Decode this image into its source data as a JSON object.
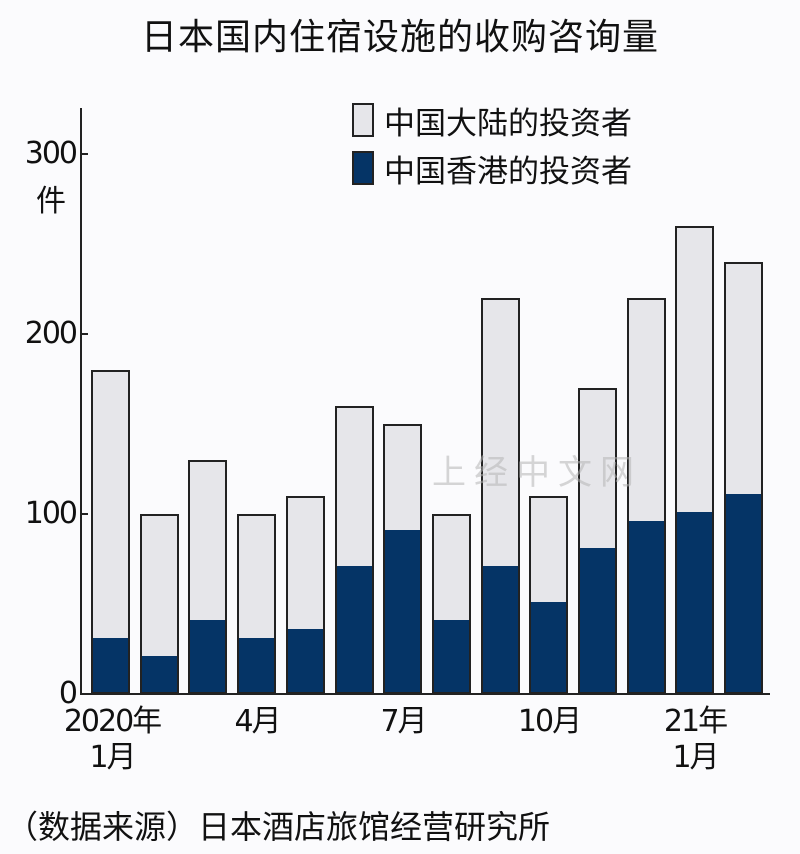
{
  "title": "日本国内住宿设施的收购咨询量",
  "legend": [
    {
      "label": "中国大陆的投资者",
      "color": "#e6e6ea"
    },
    {
      "label": "中国香港的投资者",
      "color": "#053466"
    }
  ],
  "y_axis": {
    "ticks": [
      "300",
      "200",
      "100",
      "0"
    ],
    "unit": "件"
  },
  "x_axis": {
    "labels": [
      {
        "line1": "2020年",
        "line2": "1月"
      },
      {
        "line1": "4月",
        "line2": ""
      },
      {
        "line1": "7月",
        "line2": ""
      },
      {
        "line1": "10月",
        "line2": ""
      },
      {
        "line1": "21年",
        "line2": "1月"
      }
    ]
  },
  "source": "（数据来源）日本酒店旅馆经营研究所",
  "watermark": "上经中文网",
  "chart_data": {
    "type": "bar",
    "stacked": true,
    "title": "日本国内住宿设施的收购咨询量",
    "xlabel": "",
    "ylabel": "件",
    "ylim": [
      0,
      320
    ],
    "yticks": [
      0,
      100,
      200,
      300
    ],
    "grid": false,
    "legend_position": "top-right",
    "categories": [
      "2020-01",
      "2020-02",
      "2020-03",
      "2020-04",
      "2020-05",
      "2020-06",
      "2020-07",
      "2020-08",
      "2020-09",
      "2020-10",
      "2020-11",
      "2020-12",
      "2021-01",
      "2021-02"
    ],
    "tick_labels": {
      "2020-01": "2020年1月",
      "2020-04": "4月",
      "2020-07": "7月",
      "2020-10": "10月",
      "2021-01": "21年1月"
    },
    "series": [
      {
        "name": "中国香港的投资者",
        "color": "#053466",
        "values": [
          30,
          20,
          40,
          30,
          35,
          70,
          90,
          40,
          70,
          50,
          80,
          95,
          100,
          110
        ]
      },
      {
        "name": "中国大陆的投资者",
        "color": "#e6e6ea",
        "values": [
          150,
          80,
          90,
          70,
          75,
          90,
          60,
          60,
          150,
          60,
          90,
          125,
          160,
          130
        ]
      }
    ],
    "totals": [
      180,
      100,
      130,
      100,
      110,
      160,
      150,
      100,
      220,
      110,
      170,
      220,
      260,
      240
    ]
  }
}
